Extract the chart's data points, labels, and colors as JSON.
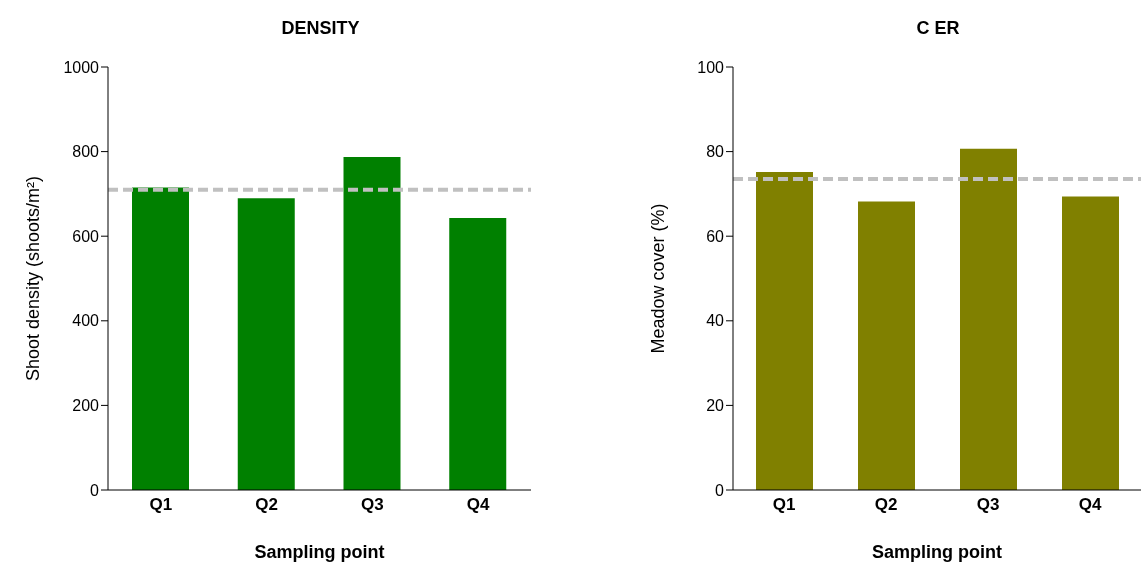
{
  "chart_data": [
    {
      "type": "bar",
      "title": "DENSITY",
      "xlabel": "Sampling point",
      "ylabel": "Shoot density (shoots/m²)",
      "categories": [
        "Q1",
        "Q2",
        "Q3",
        "Q4"
      ],
      "values": [
        715,
        690,
        787,
        643
      ],
      "color": "#008000",
      "ylim": [
        0,
        1000
      ],
      "yticks": [
        0,
        200,
        400,
        600,
        800,
        1000
      ],
      "grid": false,
      "ref_lines": [
        {
          "axis": "y",
          "value": 710,
          "color": "#c0c0c0",
          "line_style": "dashed"
        }
      ]
    },
    {
      "type": "bar",
      "title": "C ER",
      "xlabel": "Sampling point",
      "ylabel": "Meadow cover (%)",
      "categories": [
        "Q1",
        "Q2",
        "Q3",
        "Q4"
      ],
      "values": [
        75.2,
        68.2,
        80.7,
        69.4
      ],
      "color": "#808000",
      "ylim": [
        0,
        100
      ],
      "yticks": [
        0,
        20,
        40,
        60,
        80,
        100
      ],
      "grid": false,
      "ref_lines": [
        {
          "axis": "y",
          "value": 73.5,
          "color": "#c0c0c0",
          "line_style": "dashed"
        }
      ]
    }
  ]
}
